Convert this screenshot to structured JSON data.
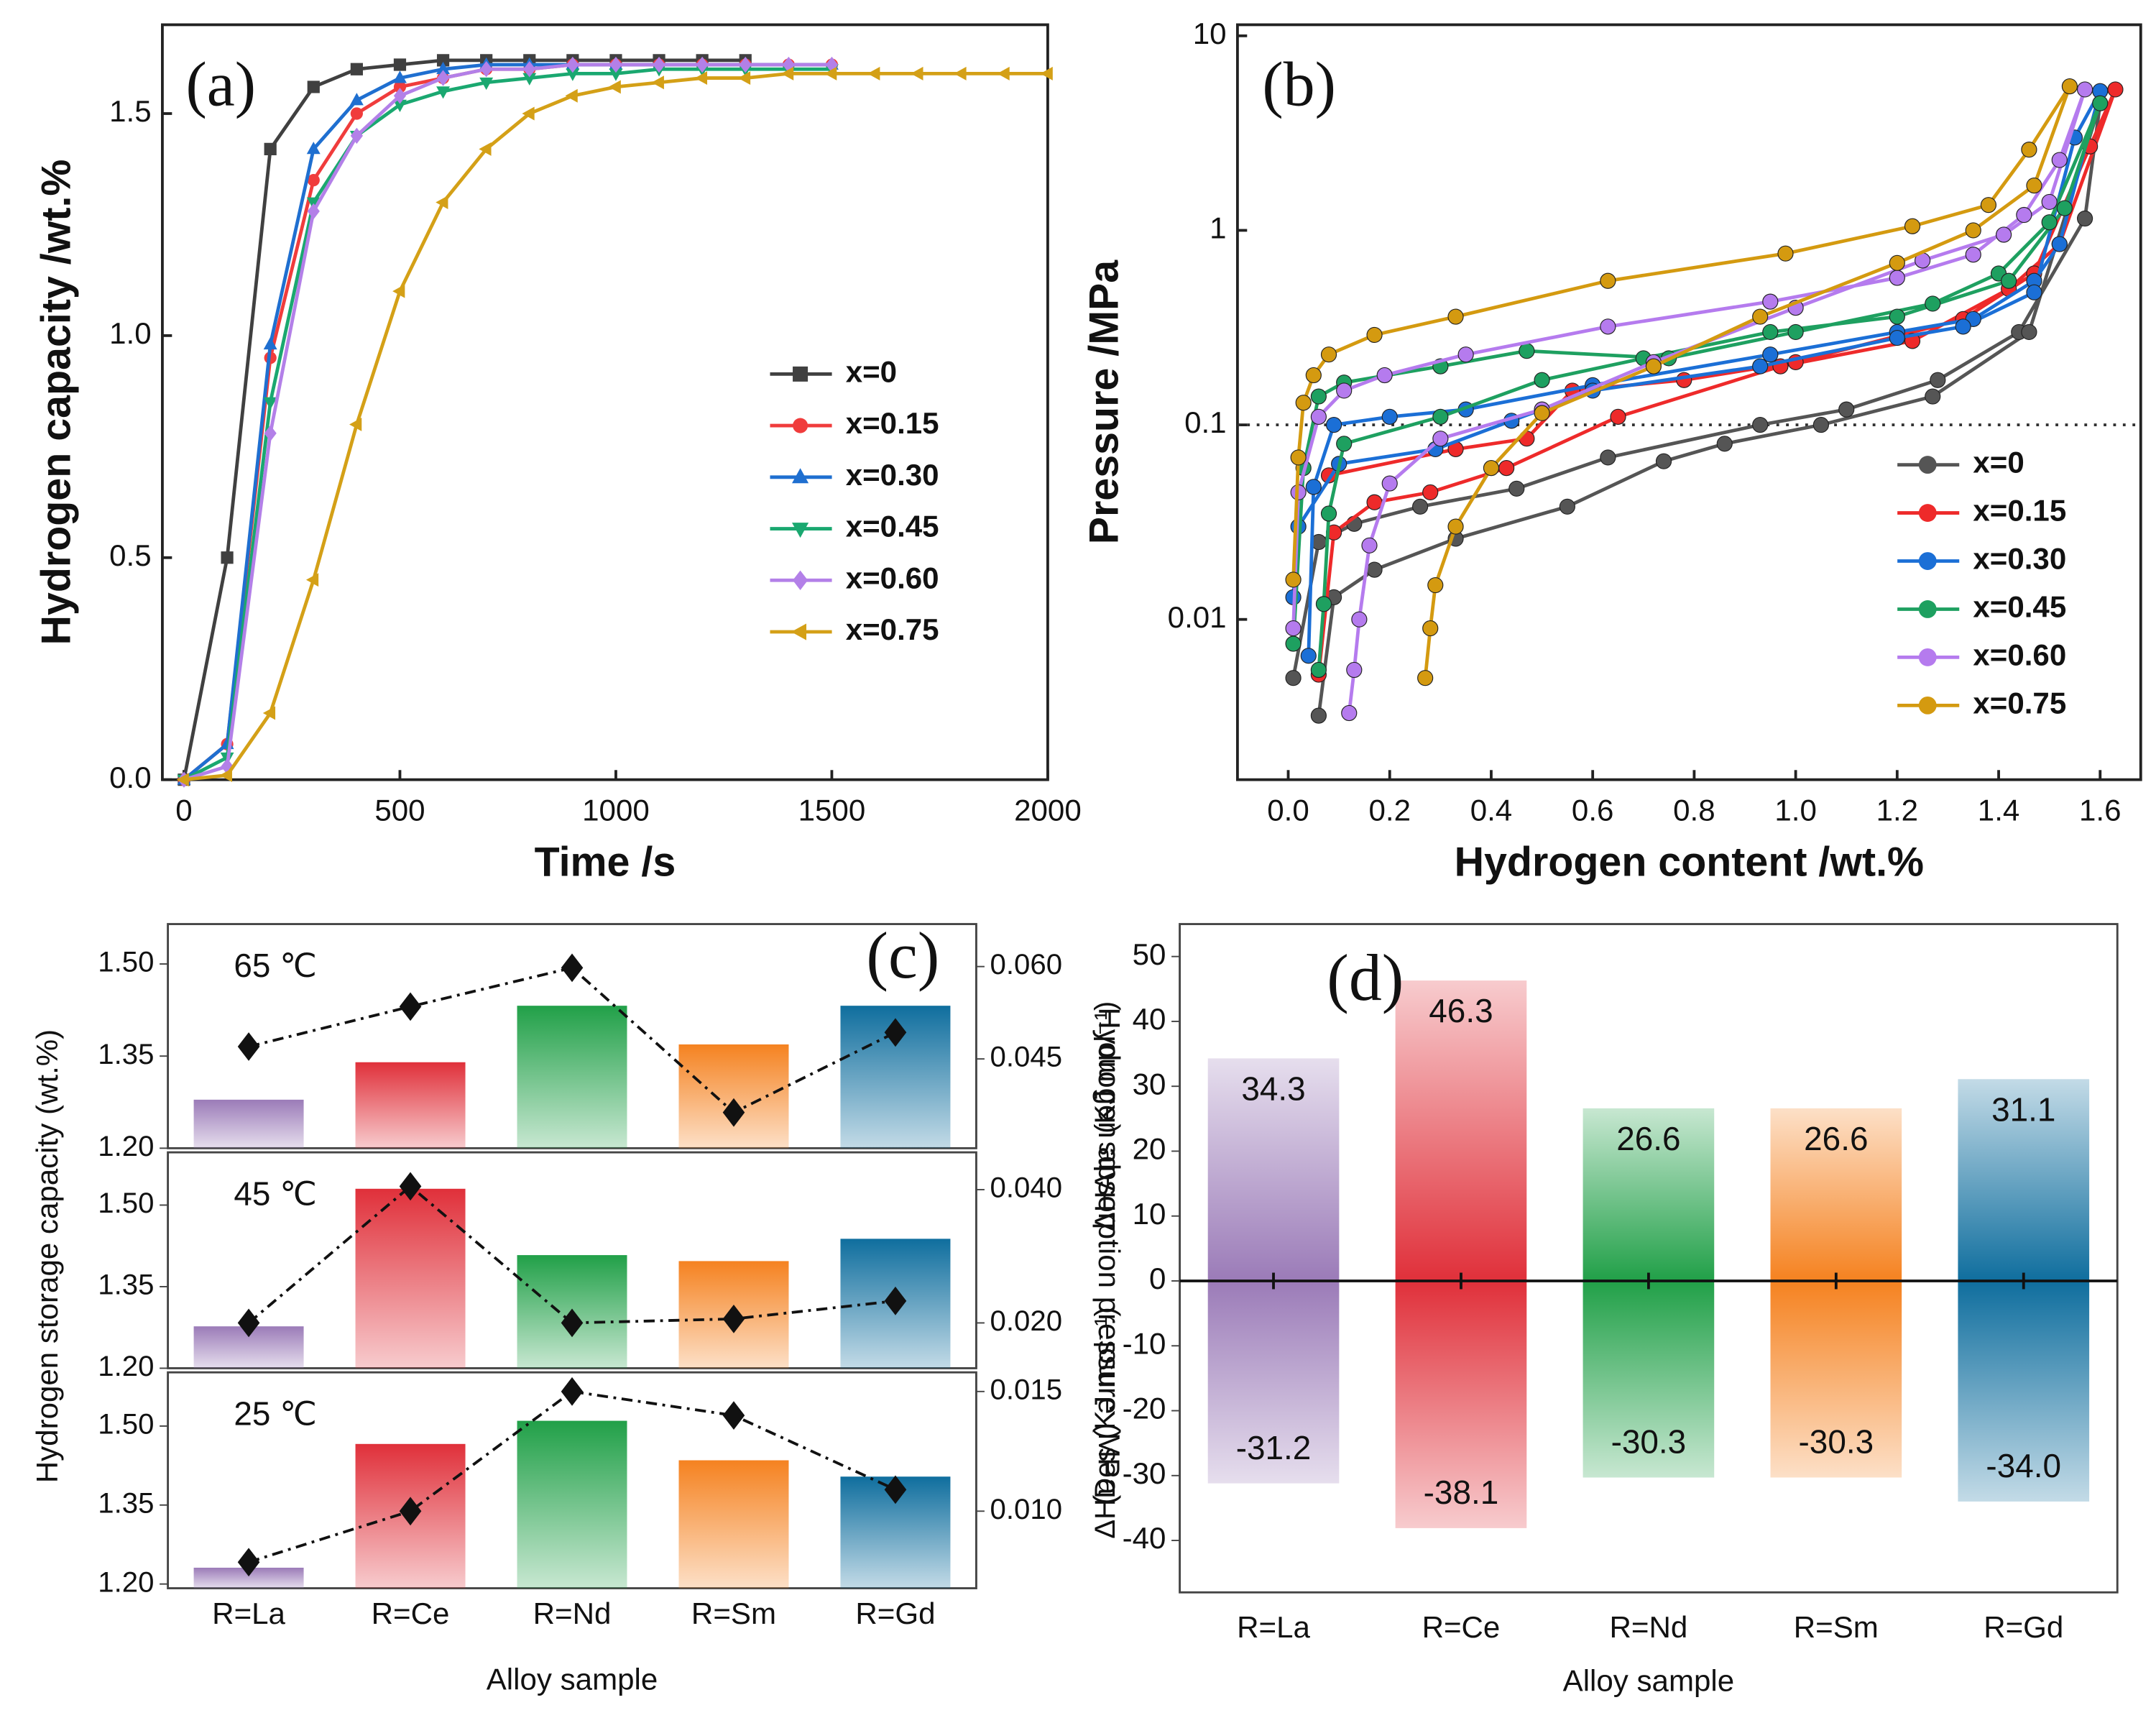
{
  "chart_data": [
    {
      "type": "line",
      "panel_label": "(a)",
      "xlabel": "Time /s",
      "ylabel": "Hydrogen capacity /wt.%",
      "x": [
        0,
        100,
        200,
        300,
        400,
        500,
        600,
        700,
        800,
        900,
        1000,
        1100,
        1200,
        1300,
        1400,
        1500,
        1600,
        1700,
        1800,
        1900,
        2000
      ],
      "series": [
        {
          "name": "x=0",
          "color": "#404040",
          "marker": "square",
          "values": [
            0,
            0.5,
            1.42,
            1.56,
            1.6,
            1.61,
            1.62,
            1.62,
            1.62,
            1.62,
            1.62,
            1.62,
            1.62,
            1.62,
            null,
            null,
            null,
            null,
            null,
            null,
            null
          ]
        },
        {
          "name": "x=0.15",
          "color": "#f03c3c",
          "marker": "circle",
          "values": [
            0,
            0.08,
            0.95,
            1.35,
            1.5,
            1.56,
            1.58,
            1.6,
            1.6,
            1.61,
            1.61,
            1.61,
            1.61,
            1.61,
            1.61,
            1.61,
            null,
            null,
            null,
            null,
            null
          ]
        },
        {
          "name": "x=0.30",
          "color": "#1f6fd0",
          "marker": "triangle-up",
          "values": [
            0,
            0.08,
            0.98,
            1.42,
            1.53,
            1.58,
            1.6,
            1.61,
            1.61,
            1.61,
            1.61,
            1.61,
            1.61,
            1.61,
            1.61,
            1.61,
            null,
            null,
            null,
            null,
            null
          ]
        },
        {
          "name": "x=0.45",
          "color": "#1aa870",
          "marker": "triangle-down",
          "values": [
            0,
            0.05,
            0.85,
            1.3,
            1.45,
            1.52,
            1.55,
            1.57,
            1.58,
            1.59,
            1.59,
            1.6,
            1.6,
            1.6,
            1.6,
            1.6,
            null,
            null,
            null,
            null,
            null
          ]
        },
        {
          "name": "x=0.60",
          "color": "#b380e8",
          "marker": "diamond",
          "values": [
            0,
            0.03,
            0.78,
            1.28,
            1.45,
            1.54,
            1.58,
            1.6,
            1.6,
            1.61,
            1.61,
            1.61,
            1.61,
            1.61,
            1.61,
            1.61,
            null,
            null,
            null,
            null,
            null
          ]
        },
        {
          "name": "x=0.75",
          "color": "#d4a017",
          "marker": "triangle-left",
          "values": [
            0,
            0.01,
            0.15,
            0.45,
            0.8,
            1.1,
            1.3,
            1.42,
            1.5,
            1.54,
            1.56,
            1.57,
            1.58,
            1.58,
            1.59,
            1.59,
            1.59,
            1.59,
            1.59,
            1.59,
            1.59
          ]
        }
      ],
      "xlim": [
        -50,
        2000
      ],
      "ylim": [
        0,
        1.7
      ],
      "xticks": [
        0,
        500,
        1000,
        1500,
        2000
      ],
      "yticks": [
        {
          "value": 0,
          "label": "0.0"
        },
        0.5,
        {
          "value": 1,
          "label": "1.0"
        },
        1.5
      ],
      "legend": "center right"
    },
    {
      "type": "line",
      "panel_label": "(b)",
      "xlabel": "Hydrogen content /wt.%",
      "ylabel": "Pressure /MPa",
      "log_y": true,
      "hline": 0.1,
      "series": [
        {
          "name": "x=0",
          "color": "#555555",
          "marker": "circle",
          "x": [
            0.01,
            0.06,
            0.13,
            0.26,
            0.45,
            0.63,
            0.93,
            1.1,
            1.28,
            1.44,
            1.57,
            1.6,
            1.46,
            1.27,
            1.05,
            0.86,
            0.74,
            0.55,
            0.33,
            0.17,
            0.09,
            0.06
          ],
          "values": [
            0.005,
            0.025,
            0.031,
            0.038,
            0.047,
            0.068,
            0.1,
            0.12,
            0.17,
            0.3,
            1.15,
            4.5,
            0.3,
            0.14,
            0.1,
            0.08,
            0.065,
            0.038,
            0.026,
            0.018,
            0.013,
            0.0032
          ]
        },
        {
          "name": "x=0.15",
          "color": "#ee2a2a",
          "marker": "circle",
          "x": [
            0.06,
            0.09,
            0.17,
            0.28,
            0.43,
            0.65,
            0.97,
            1.23,
            1.42,
            1.52,
            1.63,
            1.58,
            1.47,
            1.33,
            1.0,
            0.78,
            0.56,
            0.47,
            0.33,
            0.08
          ],
          "values": [
            0.0052,
            0.028,
            0.04,
            0.045,
            0.06,
            0.11,
            0.2,
            0.27,
            0.5,
            0.85,
            5.3,
            2.7,
            0.6,
            0.35,
            0.21,
            0.17,
            0.15,
            0.085,
            0.075,
            0.055
          ]
        },
        {
          "name": "x=0.30",
          "color": "#1b6fd6",
          "marker": "circle",
          "x": [
            0.04,
            0.05,
            0.09,
            0.2,
            0.35,
            0.6,
            0.95,
            1.2,
            1.35,
            1.47,
            1.52,
            1.6,
            1.55,
            1.47,
            1.33,
            1.2,
            0.93,
            0.6,
            0.44,
            0.29,
            0.1,
            0.02,
            0.01
          ],
          "values": [
            0.0065,
            0.048,
            0.1,
            0.11,
            0.12,
            0.16,
            0.23,
            0.3,
            0.35,
            0.55,
            0.85,
            5.2,
            3,
            0.48,
            0.32,
            0.28,
            0.2,
            0.15,
            0.105,
            0.075,
            0.063,
            0.03,
            0.013
          ]
        },
        {
          "name": "x=0.45",
          "color": "#1ea060",
          "marker": "circle",
          "x": [
            0.01,
            0.03,
            0.06,
            0.11,
            0.3,
            0.47,
            0.75,
            1.0,
            1.27,
            1.4,
            1.5,
            1.6,
            1.53,
            1.42,
            1.2,
            0.95,
            0.7,
            0.5,
            0.3,
            0.11,
            0.08,
            0.07,
            0.06
          ],
          "values": [
            0.0075,
            0.06,
            0.14,
            0.165,
            0.2,
            0.24,
            0.22,
            0.3,
            0.42,
            0.6,
            1.1,
            4.5,
            1.3,
            0.55,
            0.36,
            0.3,
            0.22,
            0.17,
            0.11,
            0.08,
            0.035,
            0.012,
            0.0055
          ]
        },
        {
          "name": "x=0.60",
          "color": "#b57bee",
          "marker": "circle",
          "x": [
            0.01,
            0.02,
            0.06,
            0.11,
            0.19,
            0.35,
            0.63,
            0.95,
            1.2,
            1.35,
            1.45,
            1.52,
            1.57,
            1.5,
            1.41,
            1.25,
            1.0,
            0.72,
            0.5,
            0.3,
            0.2,
            0.16,
            0.14,
            0.13,
            0.12
          ],
          "values": [
            0.009,
            0.045,
            0.11,
            0.15,
            0.18,
            0.23,
            0.32,
            0.43,
            0.57,
            0.75,
            1.2,
            2.3,
            5.3,
            1.4,
            0.95,
            0.7,
            0.4,
            0.21,
            0.12,
            0.085,
            0.05,
            0.024,
            0.01,
            0.0055,
            0.0033
          ]
        },
        {
          "name": "x=0.75",
          "color": "#d49a10",
          "marker": "circle",
          "x": [
            0.01,
            0.02,
            0.03,
            0.05,
            0.08,
            0.17,
            0.33,
            0.63,
            0.98,
            1.23,
            1.38,
            1.46,
            1.54,
            1.47,
            1.35,
            1.2,
            0.93,
            0.72,
            0.5,
            0.4,
            0.33,
            0.29,
            0.28,
            0.27
          ],
          "values": [
            0.016,
            0.068,
            0.13,
            0.18,
            0.23,
            0.29,
            0.36,
            0.55,
            0.76,
            1.05,
            1.35,
            2.6,
            5.5,
            1.7,
            1.0,
            0.68,
            0.36,
            0.2,
            0.115,
            0.06,
            0.03,
            0.015,
            0.009,
            0.005
          ]
        }
      ],
      "xlim": [
        -0.1,
        1.68
      ],
      "ylim": [
        0.0015,
        11.4
      ],
      "xticks": [
        {
          "value": 0,
          "label": "0.0"
        },
        0.2,
        0.4,
        0.6,
        0.8,
        {
          "value": 1,
          "label": "1.0"
        },
        1.2,
        1.4,
        1.6
      ],
      "yticks": [
        0.01,
        0.1,
        1,
        10
      ],
      "legend": "lower right"
    },
    {
      "type": "bar_panels",
      "panel_label": "(c)",
      "ylabel": "Hydrogen storage capacity (wt.%)",
      "y2label": "Hydrogen absorption pressure (MPa)",
      "xlabel": "Alloy sample",
      "categories": [
        "R=La",
        "R=Ce",
        "R=Nd",
        "R=Sm",
        "R=Gd"
      ],
      "colors": [
        "#9b7bb8",
        "#e0303a",
        "#21a048",
        "#f58220",
        "#0f6e9e"
      ],
      "line_color": "#111111",
      "panels": [
        {
          "label": "65 ℃",
          "tick_color": "#21a048",
          "values": [
            1.279,
            1.34,
            1.432,
            1.369,
            1.432
          ],
          "line_values": [
            0.047,
            0.0535,
            0.0598,
            0.0363,
            0.0493
          ],
          "ylim": [
            1.2,
            1.565
          ],
          "yticks": [
            {
              "value": 1.2,
              "label": "1.20"
            },
            1.35,
            {
              "value": 1.5,
              "label": "1.50"
            }
          ],
          "y2lim": [
            0.0305,
            0.0669
          ],
          "y2ticks": [
            0.045,
            {
              "value": 0.06,
              "label": "0.060"
            }
          ]
        },
        {
          "label": "45 ℃",
          "tick_color": "#e0303a",
          "values": [
            1.277,
            1.53,
            1.408,
            1.397,
            1.438
          ],
          "line_values": [
            0.02,
            0.0405,
            0.02,
            0.0206,
            0.0233
          ],
          "ylim": [
            1.2,
            1.597
          ],
          "yticks": [
            {
              "value": 1.2,
              "label": "1.20"
            },
            1.35,
            {
              "value": 1.5,
              "label": "1.50"
            }
          ],
          "y2lim": [
            0.0132,
            0.0456
          ],
          "y2ticks": [
            {
              "value": 0.02,
              "label": "0.020"
            },
            {
              "value": 0.04,
              "label": "0.040"
            }
          ]
        },
        {
          "label": "25 ℃",
          "tick_color": "#9b6fc0",
          "values": [
            1.231,
            1.466,
            1.51,
            1.435,
            1.404
          ],
          "line_values": [
            0.00787,
            0.01,
            0.015,
            0.014,
            0.0109
          ],
          "ylim": [
            1.192,
            1.602
          ],
          "yticks": [
            {
              "value": 1.2,
              "label": "1.20"
            },
            1.35,
            {
              "value": 1.5,
              "label": "1.50"
            }
          ],
          "y2lim": [
            0.00678,
            0.0158
          ],
          "y2ticks": [
            {
              "value": 0.01,
              "label": "0.010"
            },
            0.015
          ]
        }
      ]
    },
    {
      "type": "bar_diverging",
      "panel_label": "(d)",
      "ylabel": "ΔHAbs (KJ mol⁻¹)",
      "ylabel2": "ΔHDes (KJ mol⁻¹)",
      "xlabel": "Alloy sample",
      "categories": [
        "R=La",
        "R=Ce",
        "R=Nd",
        "R=Sm",
        "R=Gd"
      ],
      "colors": [
        "#9b7bb8",
        "#e0303a",
        "#21a048",
        "#f58220",
        "#0f6e9e"
      ],
      "series": [
        {
          "values": [
            34.3,
            46.3,
            26.6,
            26.6,
            31.1
          ]
        },
        {
          "values": [
            -31.2,
            -38.1,
            -30.3,
            -30.3,
            -34.0
          ],
          "value_labels": [
            "-31.2",
            "-38.1",
            "-30.3",
            "-30.3",
            "-34.0"
          ]
        }
      ],
      "ylim": [
        -48,
        55
      ],
      "yticks": [
        50,
        40,
        30,
        20,
        10,
        0,
        -10,
        -20,
        -30,
        -40
      ]
    }
  ]
}
